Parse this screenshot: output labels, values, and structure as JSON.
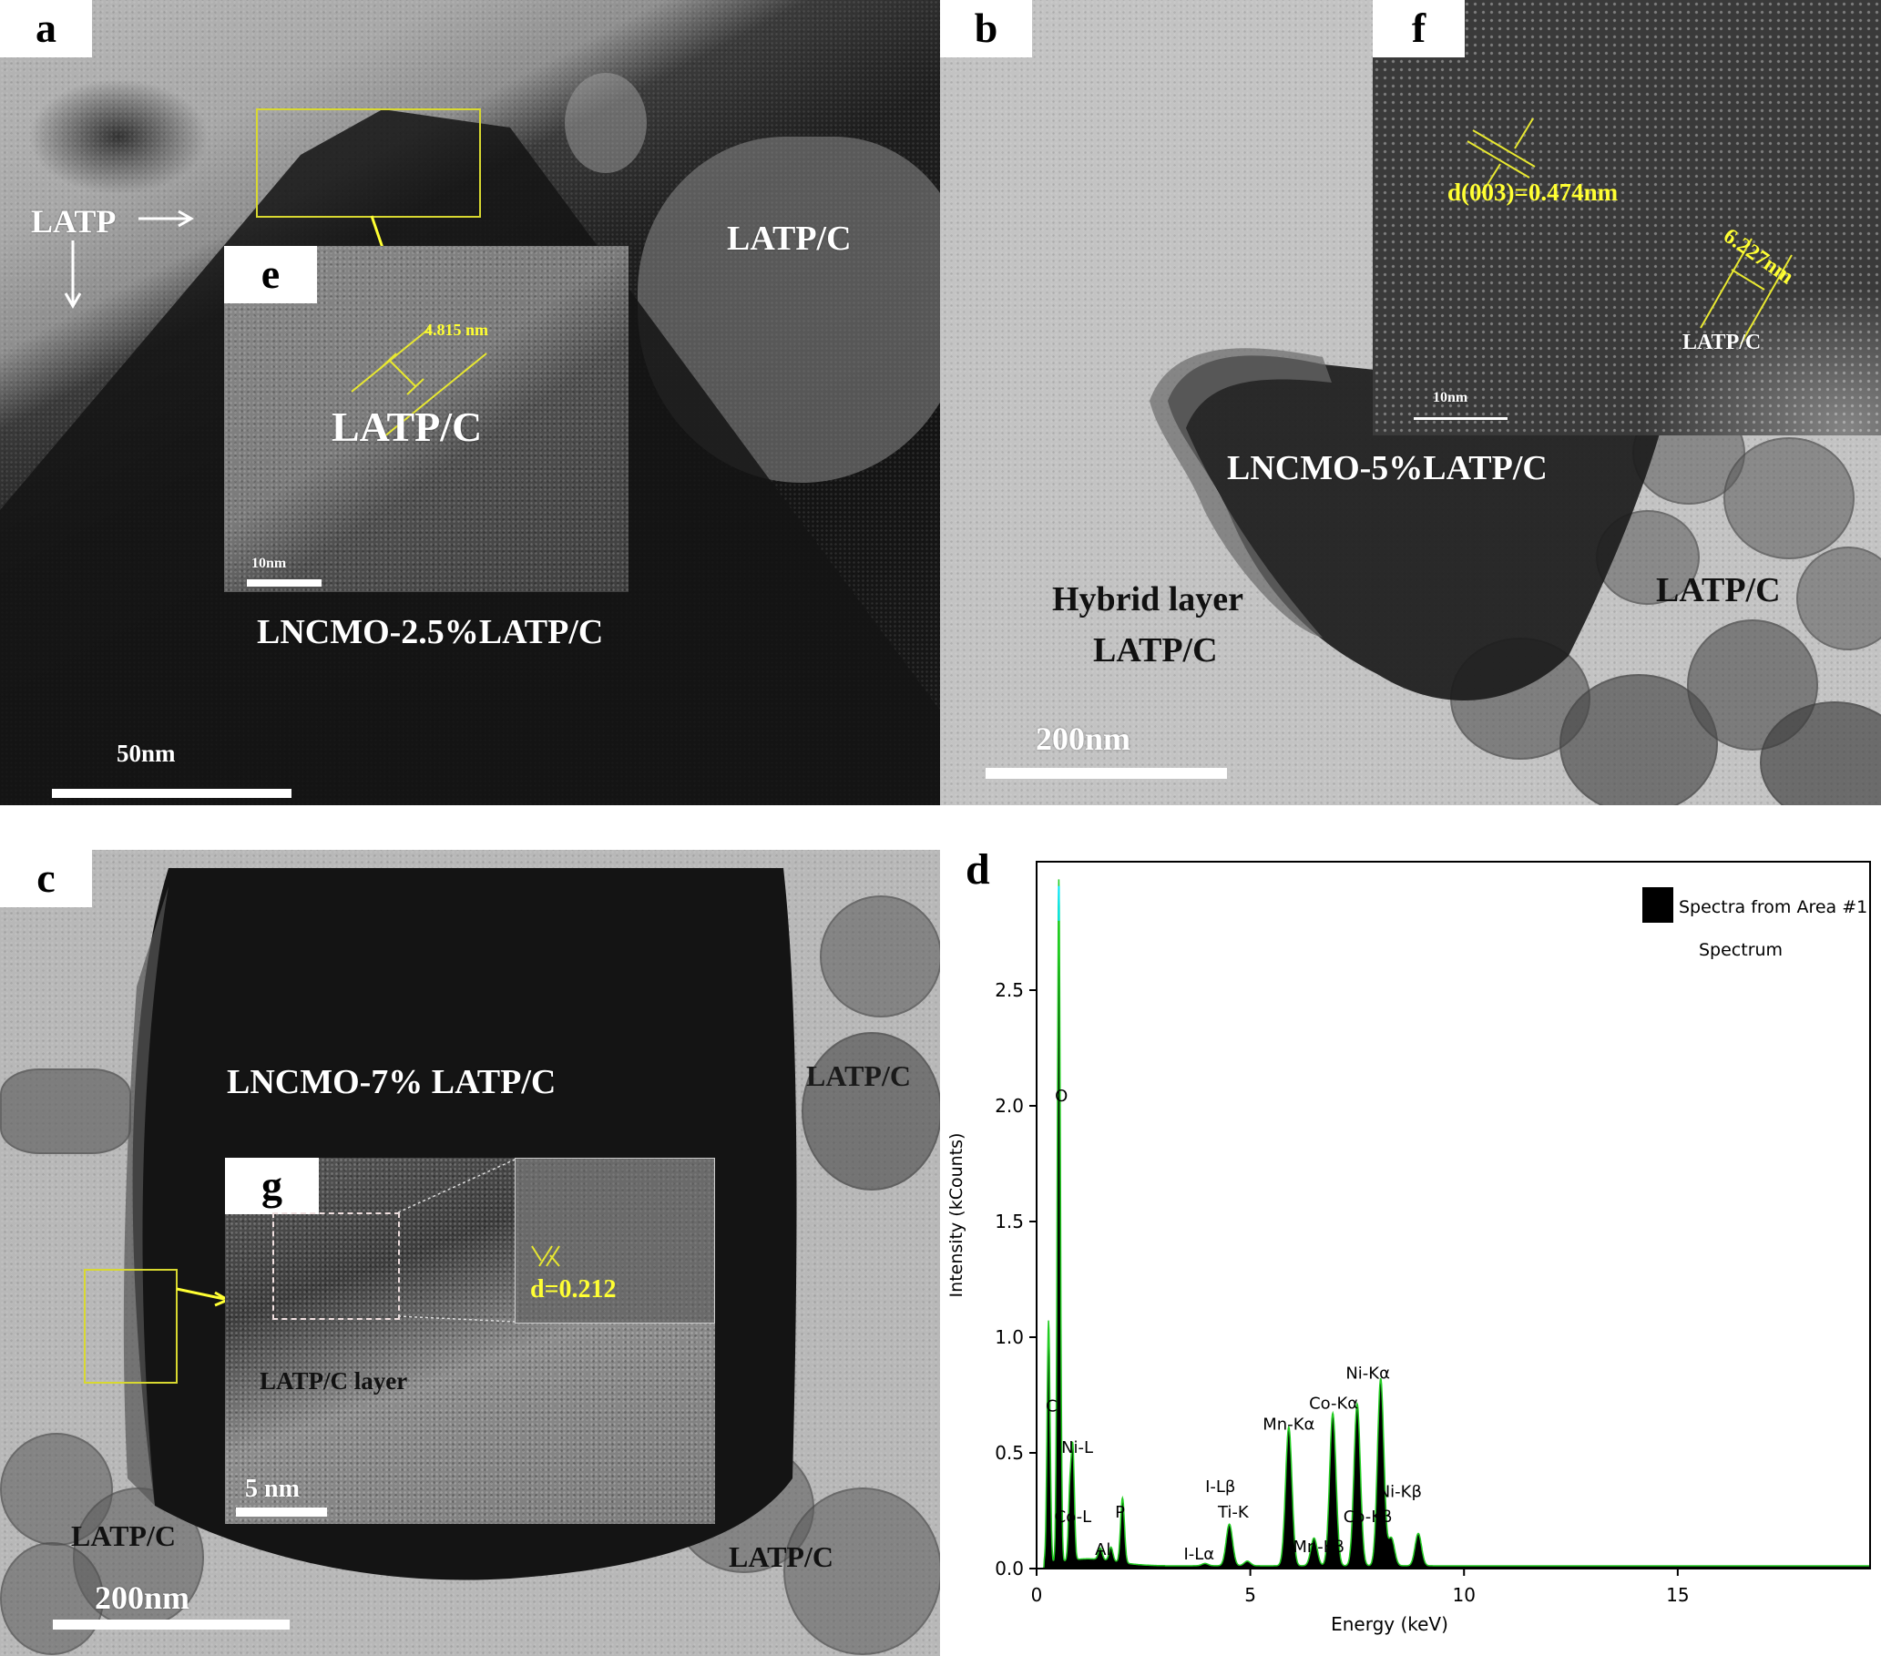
{
  "figure": {
    "panels": {
      "a": {
        "label": "a",
        "annotation_latp": "LATP",
        "annotation_latp_c": "LATP/C",
        "sample": "LNCMO-2.5%LATP/C",
        "scale_bar": "50nm",
        "inset": {
          "label": "e",
          "measurement": "4.815 nm",
          "annotation": "LATP/C",
          "scale_bar": "10nm"
        }
      },
      "b": {
        "label": "b",
        "sample": "LNCMO-5%LATP/C",
        "annotation_hybrid": "Hybrid layer",
        "annotation_hybrid_sub": "LATP/C",
        "annotation_latp_c": "LATP/C",
        "scale_bar": "200nm",
        "inset": {
          "label": "f",
          "d_spacing": "d(003)=0.474nm",
          "measurement": "6.227nm",
          "annotation": "LATP/C",
          "scale_bar": "10nm"
        }
      },
      "c": {
        "label": "c",
        "sample": "LNCMO-7% LATP/C",
        "annotation_latp_c_right": "LATP/C",
        "annotation_latp_c_bottom_left": "LATP/C",
        "annotation_latp_c_bottom_right": "LATP/C",
        "scale_bar": "200nm",
        "inset": {
          "label": "g",
          "annotation": "LATP/C layer",
          "d_spacing": "d=0.212",
          "scale_bar": "5 nm"
        }
      },
      "d": {
        "label": "d"
      }
    },
    "colors": {
      "annotation_yellow": "#ffff33",
      "spectrum_fill": "#000000",
      "spectrum_edge": "#22cc22",
      "spectrum_tip": "#00e5ff"
    }
  },
  "chart_data": {
    "type": "area",
    "title": "",
    "xlabel": "Energy (keV)",
    "ylabel": "Intensity (kCounts)",
    "xlim": [
      0,
      19.5
    ],
    "ylim": [
      0,
      3.0
    ],
    "xticks": [
      0,
      5,
      10,
      15
    ],
    "yticks": [
      0.0,
      0.5,
      1.0,
      1.5,
      2.0,
      2.5
    ],
    "ytick_labels": [
      "0.0",
      "0.5",
      "1.0",
      "1.5",
      "2.0",
      "2.5"
    ],
    "grid": false,
    "legend": {
      "position": "upper right",
      "entries": [
        "Spectra from Area #1"
      ],
      "subtitle": "Spectrum"
    },
    "series": [
      {
        "name": "Spectra from Area #1",
        "peaks": [
          {
            "energy_keV": 0.28,
            "intensity": 1.05,
            "label": "C"
          },
          {
            "energy_keV": 0.52,
            "intensity": 2.95,
            "label": "O"
          },
          {
            "energy_keV": 0.78,
            "intensity": 0.3,
            "label": "Co-L"
          },
          {
            "energy_keV": 0.85,
            "intensity": 0.46,
            "label": "Ni-L"
          },
          {
            "energy_keV": 1.49,
            "intensity": 0.05,
            "label": "Al"
          },
          {
            "energy_keV": 1.74,
            "intensity": 0.06,
            "label": ""
          },
          {
            "energy_keV": 2.01,
            "intensity": 0.28,
            "label": "P"
          },
          {
            "energy_keV": 3.94,
            "intensity": 0.01,
            "label": "I-Lα"
          },
          {
            "energy_keV": 4.51,
            "intensity": 0.18,
            "label": "Ti-K"
          },
          {
            "energy_keV": 4.22,
            "intensity": 0.0,
            "label": "I-Lβ"
          },
          {
            "energy_keV": 4.93,
            "intensity": 0.02,
            "label": ""
          },
          {
            "energy_keV": 5.9,
            "intensity": 0.6,
            "label": "Mn-Kα"
          },
          {
            "energy_keV": 6.49,
            "intensity": 0.12,
            "label": "Mn-Kβ"
          },
          {
            "energy_keV": 6.93,
            "intensity": 0.66,
            "label": "Co-Kα"
          },
          {
            "energy_keV": 7.5,
            "intensity": 0.7,
            "label": "Co-Kβ"
          },
          {
            "energy_keV": 8.05,
            "intensity": 0.81,
            "label": "Ni-Kα"
          },
          {
            "energy_keV": 8.3,
            "intensity": 0.12,
            "label": "Ni-Kβ"
          },
          {
            "energy_keV": 8.93,
            "intensity": 0.14,
            "label": ""
          }
        ]
      }
    ],
    "annotations": [
      "C",
      "O",
      "Ni-L",
      "Co-L",
      "Al",
      "P",
      "I-Lβ",
      "Ti-K",
      "I-Lα",
      "Mn-Kα",
      "Mn-Kβ",
      "Co-Kα",
      "Ni-Kα",
      "Co-Kβ",
      "Ni-Kβ"
    ]
  }
}
